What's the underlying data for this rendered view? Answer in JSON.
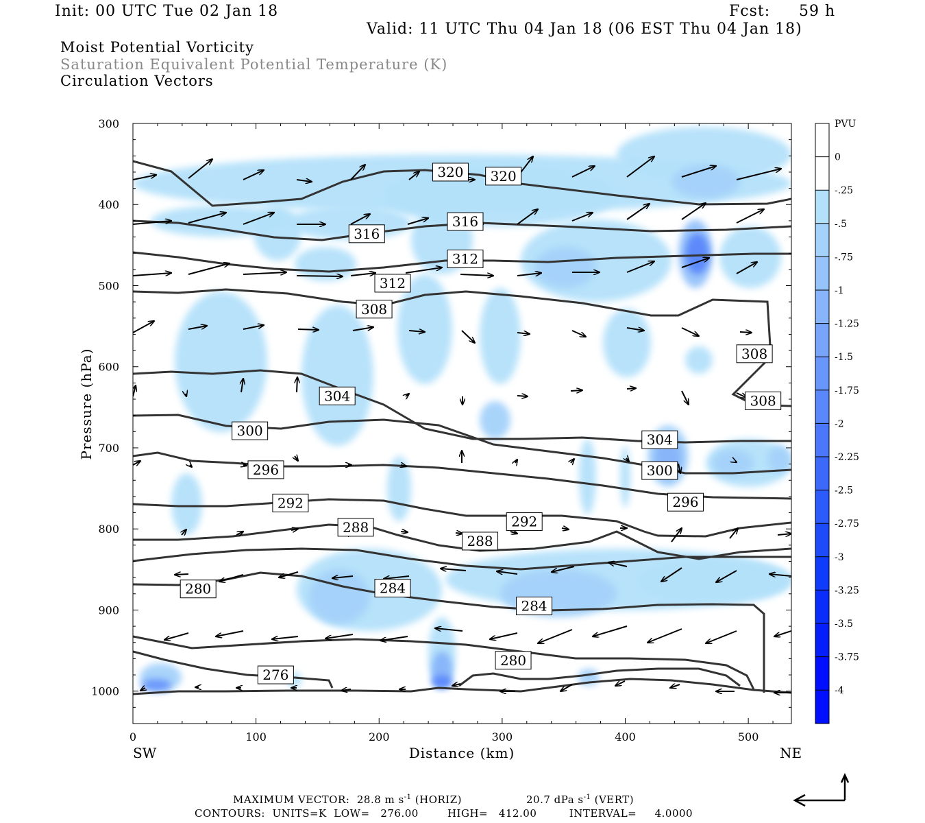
{
  "header": {
    "init": "Init: 00 UTC Tue 02 Jan 18",
    "fcst_label": "Fcst:",
    "fcst_value": "59 h",
    "valid": "Valid: 11 UTC Thu 04 Jan 18 (06 EST Thu 04 Jan 18)"
  },
  "titles": {
    "line1": "Moist Potential Vorticity",
    "line2": "Saturation Equivalent Potential Temperature (K)",
    "line3": "Circulation Vectors"
  },
  "chart_data": {
    "type": "heatmap",
    "xlabel": "Distance (km)",
    "ylabel": "Pressure (hPa)",
    "xlim": [
      0,
      535
    ],
    "ylim": [
      1040,
      300
    ],
    "x_ticks": [
      "0",
      "100",
      "200",
      "300",
      "400",
      "500"
    ],
    "y_ticks": [
      "300",
      "400",
      "500",
      "600",
      "700",
      "800",
      "900",
      "1000"
    ],
    "x_end_labels": {
      "left": "SW",
      "right": "NE"
    },
    "colorbar": {
      "units": "PVU",
      "labels": [
        "0",
        "-.25",
        "-.5",
        "-.75",
        "-1",
        "-1.25",
        "-1.5",
        "-1.75",
        "-2",
        "-2.25",
        "-2.5",
        "-2.75",
        "-3",
        "-3.25",
        "-3.5",
        "-3.75",
        "-4"
      ],
      "colors": [
        "#ffffff",
        "#b4e1fa",
        "#a5d2fa",
        "#96c3fa",
        "#87b4fa",
        "#78a5fa",
        "#6996fa",
        "#5a87fa",
        "#4b78fa",
        "#3c69fa",
        "#2d5afa",
        "#1e4bfa",
        "#0f3cfa",
        "#0a2dfa",
        "#051efa",
        "#0010ff"
      ]
    },
    "contours": {
      "units": "K",
      "low": 276.0,
      "high": 412.0,
      "interval": 4.0,
      "labels": [
        {
          "v": "320",
          "x": 258,
          "p": 360
        },
        {
          "v": "320",
          "x": 301,
          "p": 365
        },
        {
          "v": "316",
          "x": 190,
          "p": 436
        },
        {
          "v": "316",
          "x": 270,
          "p": 421
        },
        {
          "v": "312",
          "x": 211,
          "p": 497
        },
        {
          "v": "312",
          "x": 270,
          "p": 467
        },
        {
          "v": "308",
          "x": 196,
          "p": 529
        },
        {
          "v": "308",
          "x": 505,
          "p": 584
        },
        {
          "v": "308",
          "x": 512,
          "p": 642
        },
        {
          "v": "304",
          "x": 166,
          "p": 636
        },
        {
          "v": "304",
          "x": 428,
          "p": 690
        },
        {
          "v": "300",
          "x": 95,
          "p": 679
        },
        {
          "v": "300",
          "x": 428,
          "p": 728
        },
        {
          "v": "296",
          "x": 108,
          "p": 727
        },
        {
          "v": "296",
          "x": 449,
          "p": 767
        },
        {
          "v": "292",
          "x": 128,
          "p": 768
        },
        {
          "v": "292",
          "x": 318,
          "p": 791
        },
        {
          "v": "288",
          "x": 181,
          "p": 798
        },
        {
          "v": "288",
          "x": 282,
          "p": 815
        },
        {
          "v": "284",
          "x": 211,
          "p": 873
        },
        {
          "v": "284",
          "x": 326,
          "p": 895
        },
        {
          "v": "280",
          "x": 53,
          "p": 874
        },
        {
          "v": "280",
          "x": 309,
          "p": 962
        },
        {
          "v": "276",
          "x": 116,
          "p": 980
        }
      ]
    },
    "vectors": {
      "max_horiz": "28.8 m s",
      "horiz_units_suffix": " (HORIZ)",
      "max_vert": "20.7 dPa s",
      "vert_units_suffix": " (VERT)"
    }
  },
  "footer": {
    "max_vector_prefix": "MAXIMUM VECTOR:",
    "max_horiz": "28.8 m s",
    "exp": "-1",
    "horiz_suffix": " (HORIZ)",
    "max_vert": "20.7 dPa s",
    "vert_suffix": " (VERT)",
    "contours_line": "CONTOURS:  UNITS=K  LOW=   276.00        HIGH=   412.00         INTERVAL=     4.0000"
  }
}
